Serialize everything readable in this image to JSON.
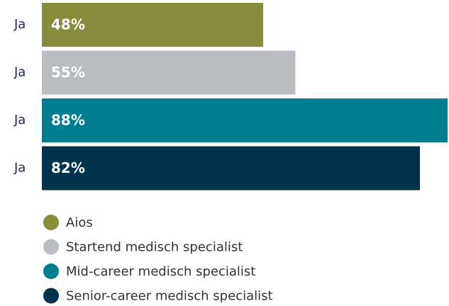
{
  "chart_data": {
    "type": "bar",
    "orientation": "horizontal",
    "categories": [
      "Ja",
      "Ja",
      "Ja",
      "Ja"
    ],
    "series": [
      {
        "name": "Aios",
        "color": "#878d3d",
        "values": [
          48,
          null,
          null,
          null
        ],
        "value_labels": [
          "48%",
          null,
          null,
          null
        ]
      },
      {
        "name": "Startend medisch specialist",
        "color": "#b9bcc0",
        "values": [
          null,
          55,
          null,
          null
        ],
        "value_labels": [
          null,
          "55%",
          null,
          null
        ]
      },
      {
        "name": "Mid-career medisch specialist",
        "color": "#007e8f",
        "values": [
          null,
          null,
          88,
          null
        ],
        "value_labels": [
          null,
          null,
          "88%",
          null
        ]
      },
      {
        "name": "Senior-career medisch specialist",
        "color": "#00334e",
        "values": [
          null,
          null,
          null,
          82
        ],
        "value_labels": [
          null,
          null,
          null,
          "82%"
        ]
      }
    ]
  }
}
